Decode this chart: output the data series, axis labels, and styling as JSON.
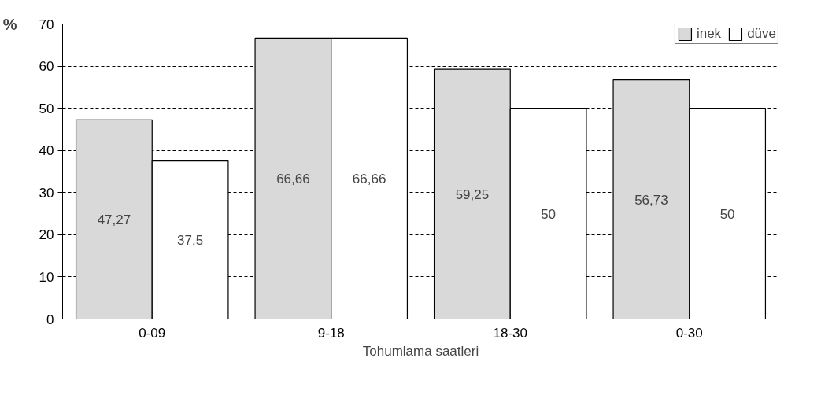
{
  "chart_data": {
    "type": "bar",
    "ylabel": "%",
    "xlabel": "Tohumlama saatleri",
    "categories": [
      "0-09",
      "9-18",
      "18-30",
      "0-30"
    ],
    "series": [
      {
        "name": "inek",
        "color": "#d9d9d9",
        "values": [
          47.27,
          66.66,
          59.25,
          56.73
        ],
        "value_labels": [
          "47,27",
          "66,66",
          "59,25",
          "56,73"
        ]
      },
      {
        "name": "düve",
        "color": "#ffffff",
        "values": [
          37.5,
          66.66,
          50,
          50
        ],
        "value_labels": [
          "37,5",
          "66,66",
          "50",
          "50"
        ]
      }
    ],
    "ylim": [
      0,
      70
    ],
    "yticks": [
      0,
      10,
      20,
      30,
      40,
      50,
      60,
      70
    ],
    "grid": "y",
    "legend": "top right"
  }
}
